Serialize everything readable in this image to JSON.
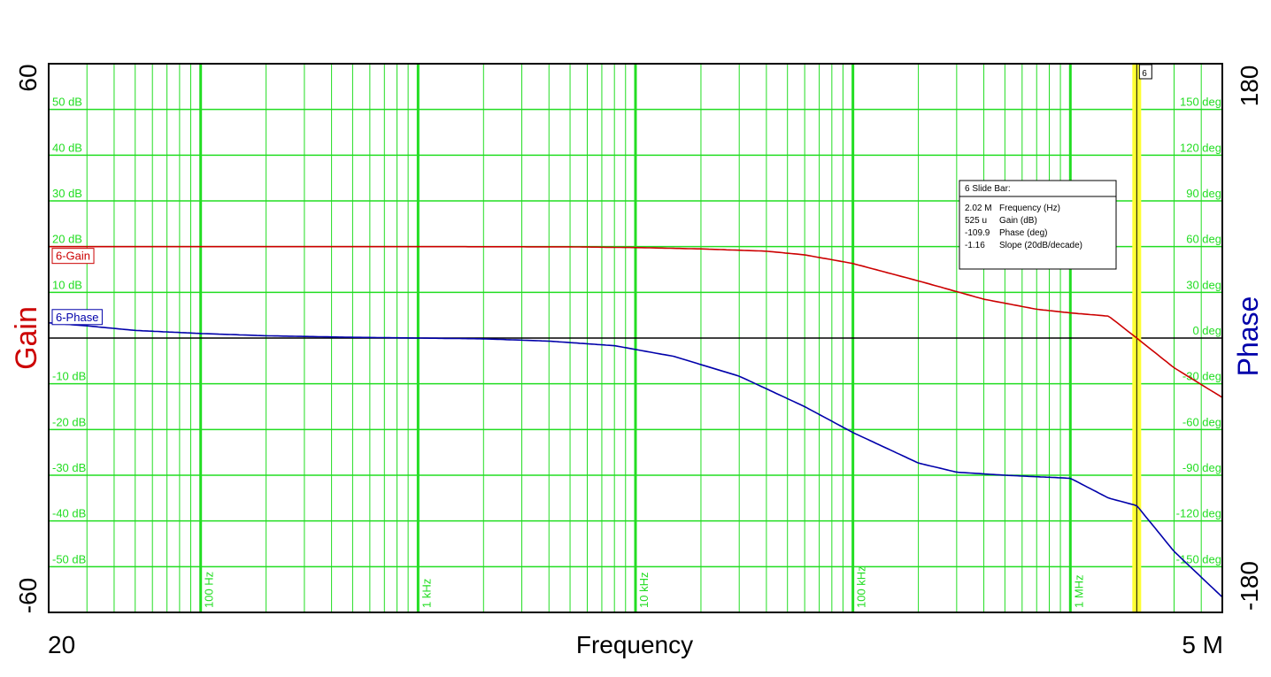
{
  "chart_data": {
    "type": "line",
    "title": "",
    "x_axis": {
      "label": "Frequency",
      "scale": "log",
      "range": [
        20,
        5000000
      ],
      "min_label": "20",
      "max_label": "5 M",
      "decade_ticks": [
        {
          "value": 100,
          "label": "100 Hz"
        },
        {
          "value": 1000,
          "label": "1 kHz"
        },
        {
          "value": 10000,
          "label": "10 kHz"
        },
        {
          "value": 100000,
          "label": "100 kHz"
        },
        {
          "value": 1000000,
          "label": "1 MHz"
        }
      ]
    },
    "left_axis": {
      "label": "Gain",
      "range": [
        -60,
        60
      ],
      "min_label": "-60",
      "max_label": "60",
      "ticks": [
        {
          "value": 50,
          "label": "50 dB"
        },
        {
          "value": 40,
          "label": "40 dB"
        },
        {
          "value": 30,
          "label": "30 dB"
        },
        {
          "value": 20,
          "label": "20 dB"
        },
        {
          "value": 10,
          "label": "10 dB"
        },
        {
          "value": -10,
          "label": "-10 dB"
        },
        {
          "value": -20,
          "label": "-20 dB"
        },
        {
          "value": -30,
          "label": "-30 dB"
        },
        {
          "value": -40,
          "label": "-40 dB"
        },
        {
          "value": -50,
          "label": "-50 dB"
        }
      ]
    },
    "right_axis": {
      "label": "Phase",
      "range": [
        -180,
        180
      ],
      "min_label": "-180",
      "max_label": "180",
      "ticks": [
        {
          "value": 150,
          "label": "150 deg"
        },
        {
          "value": 120,
          "label": "120 deg"
        },
        {
          "value": 90,
          "label": "90 deg"
        },
        {
          "value": 60,
          "label": "60 deg"
        },
        {
          "value": 30,
          "label": "30 deg"
        },
        {
          "value": 0,
          "label": "0 deg"
        },
        {
          "value": -30,
          "label": "-30 deg"
        },
        {
          "value": -60,
          "label": "-60 deg"
        },
        {
          "value": -90,
          "label": "-90 deg"
        },
        {
          "value": -120,
          "label": "-120 deg"
        },
        {
          "value": -150,
          "label": "-150 deg"
        }
      ]
    },
    "grid": true,
    "series": [
      {
        "name": "6-Gain",
        "axis": "left",
        "color": "#cc0000",
        "x": [
          20,
          100,
          1000,
          5000,
          10000,
          20000,
          40000,
          60000,
          100000,
          200000,
          400000,
          700000,
          1000000,
          1500000,
          2020000,
          3000000,
          5000000
        ],
        "y": [
          20,
          20,
          20,
          19.95,
          19.8,
          19.5,
          19,
          18.2,
          16.3,
          12.5,
          8.5,
          6.3,
          5.5,
          4.8,
          0,
          -6.5,
          -13
        ]
      },
      {
        "name": "6-Phase",
        "axis": "right",
        "color": "#0000aa",
        "x": [
          20,
          30,
          50,
          100,
          200,
          500,
          1000,
          2000,
          4000,
          8000,
          15000,
          30000,
          60000,
          100000,
          200000,
          300000,
          500000,
          1000000,
          1500000,
          2020000,
          3000000,
          5000000
        ],
        "y": [
          10,
          8,
          5,
          3,
          1.5,
          0.5,
          0,
          -0.5,
          -2,
          -5,
          -12,
          -25,
          -45,
          -62,
          -82,
          -88,
          -90,
          -92,
          -105,
          -109.9,
          -140,
          -170
        ]
      }
    ],
    "cursor": {
      "id": "6",
      "frequency": 2020000
    }
  },
  "slide_bar": {
    "title": "6  Slide Bar:",
    "rows": [
      {
        "value": "2.02 M",
        "label": "Frequency (Hz)"
      },
      {
        "value": "525 u",
        "label": "Gain (dB)"
      },
      {
        "value": "-109.9",
        "label": "Phase (deg)"
      },
      {
        "value": "-1.16",
        "label": "Slope (20dB/decade)"
      }
    ]
  },
  "colors": {
    "grid": "#22dd22",
    "gain": "#cc0000",
    "phase": "#0000aa",
    "cursor": "#ffff33"
  }
}
